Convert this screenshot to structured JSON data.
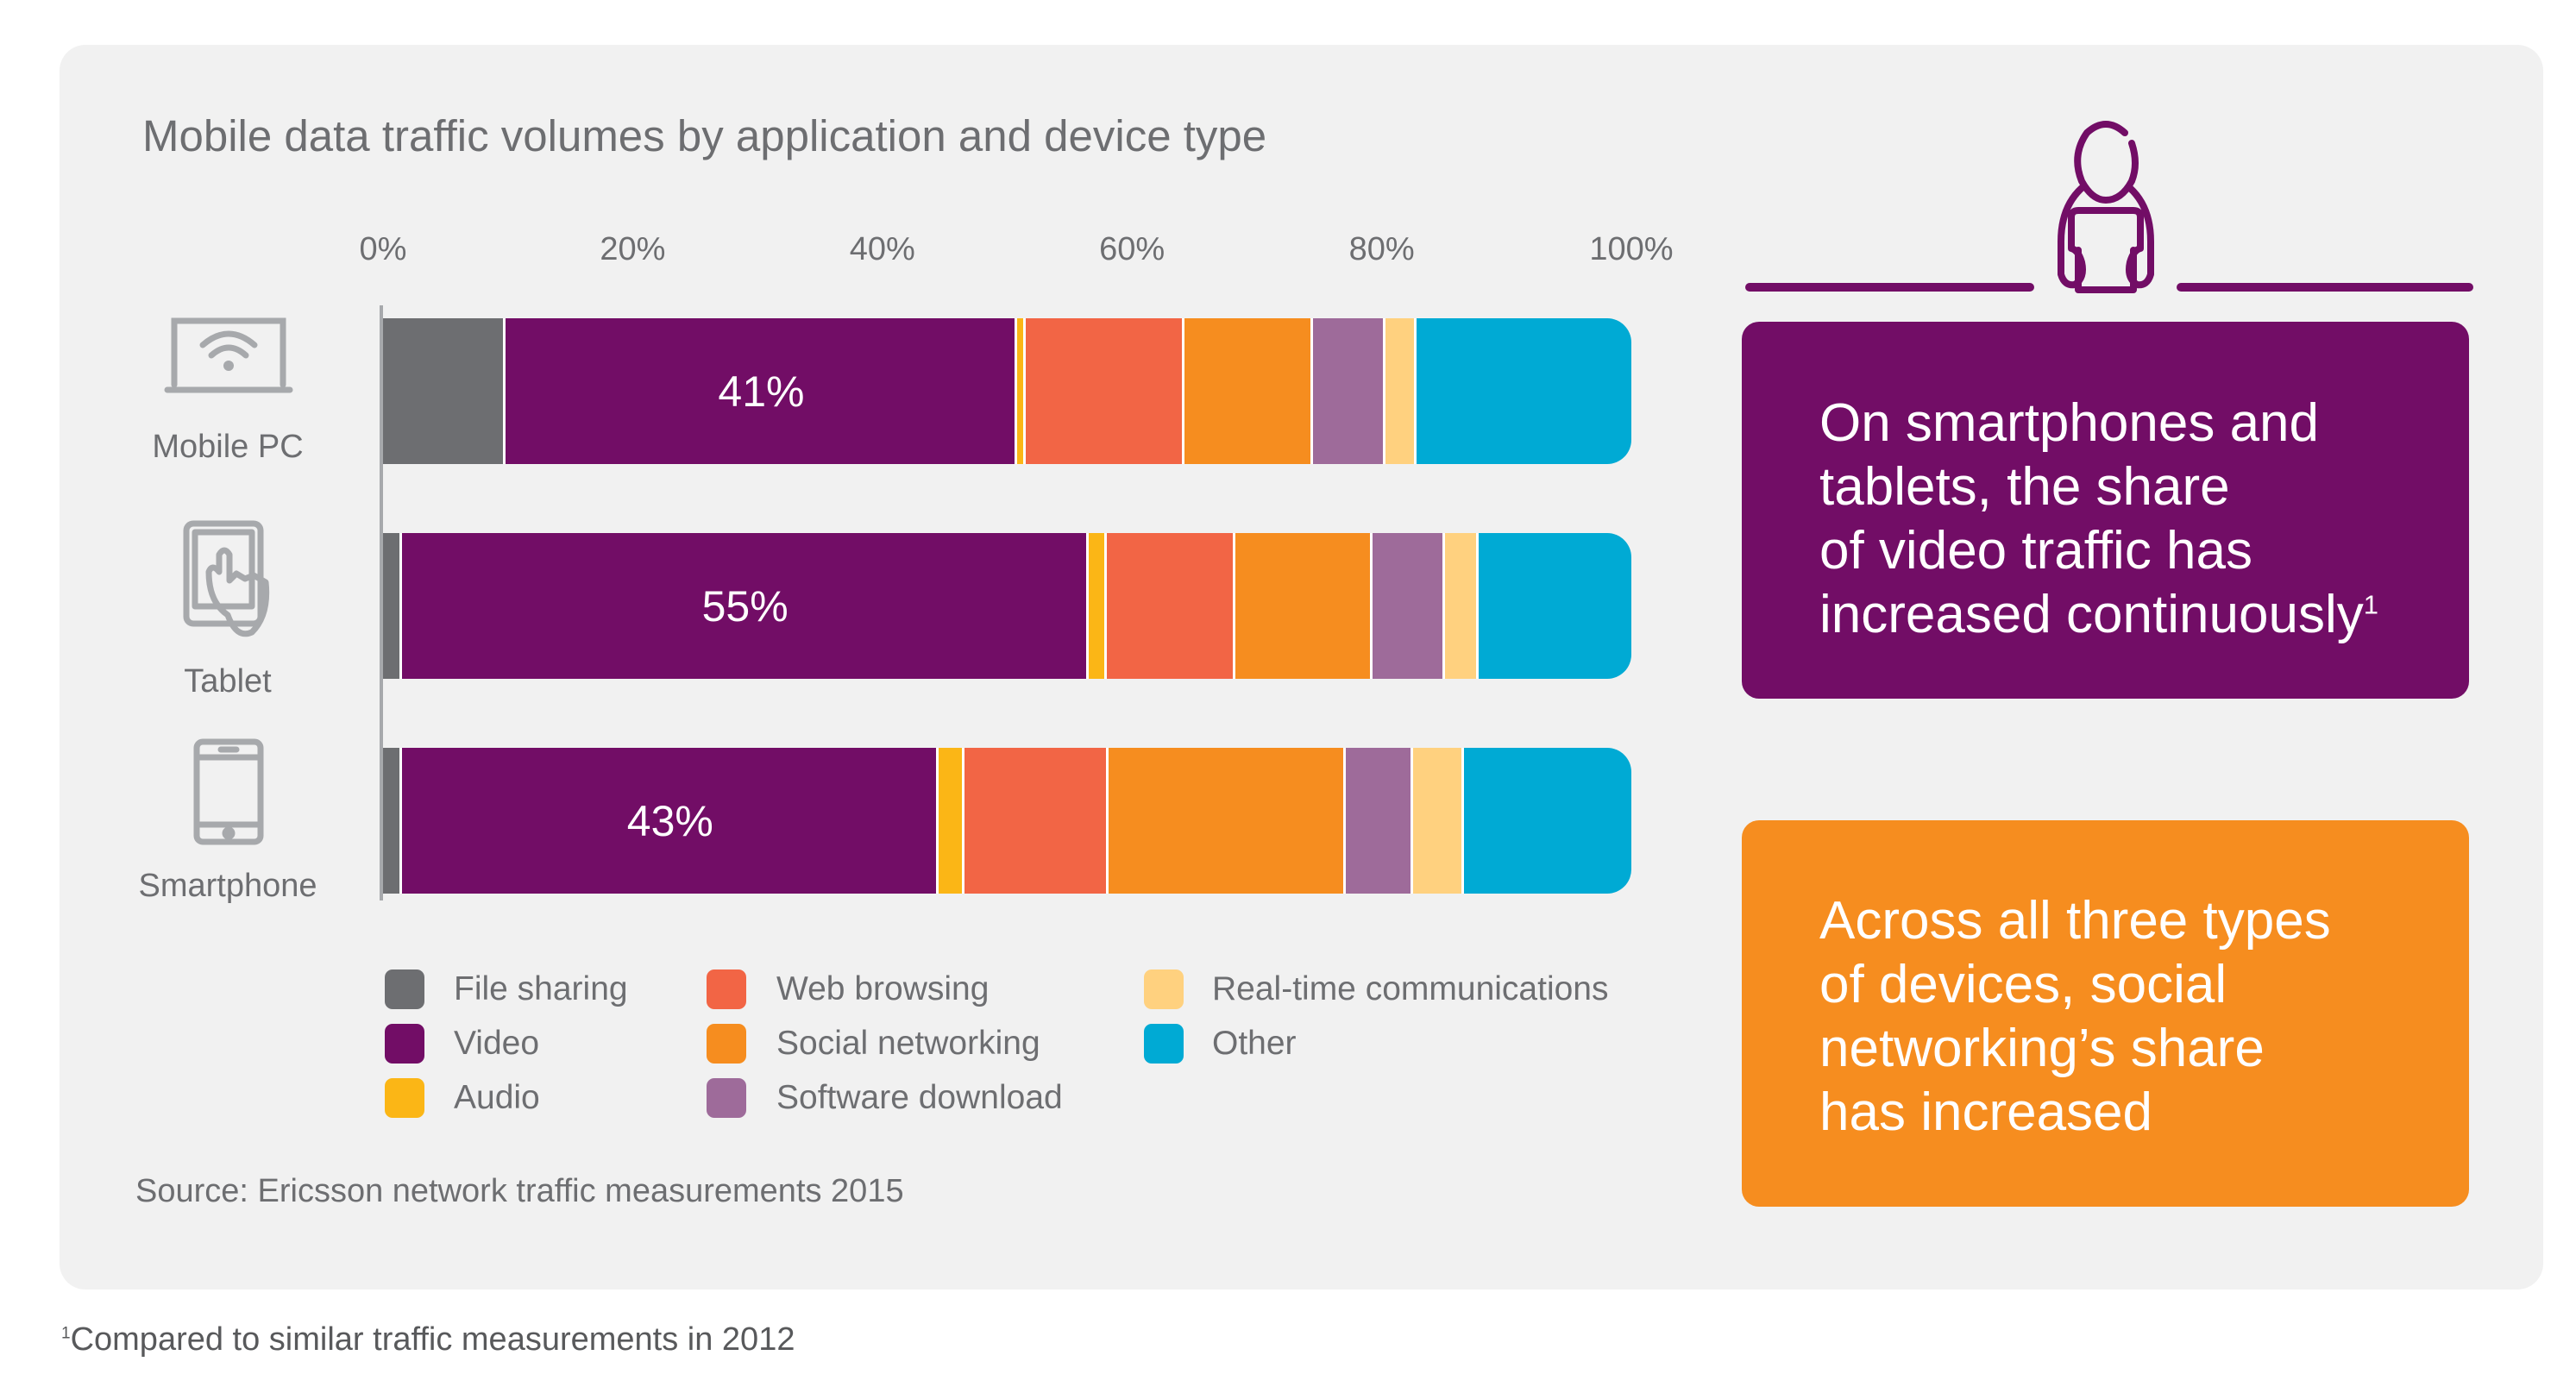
{
  "chart_data": {
    "type": "bar",
    "orientation": "horizontal",
    "stacked": true,
    "title": "Mobile data traffic volumes by application and device type",
    "x_ticks": [
      "0%",
      "20%",
      "40%",
      "60%",
      "80%",
      "100%"
    ],
    "xlim": [
      0,
      100
    ],
    "grid": false,
    "legend_placement": "bottom",
    "categories": [
      "Mobile PC",
      "Tablet",
      "Smartphone"
    ],
    "series": [
      {
        "name": "File sharing",
        "color": "#6d6e71",
        "values": [
          9.8,
          1.5,
          1.5
        ]
      },
      {
        "name": "Video",
        "color": "#720d66",
        "values": [
          41,
          55,
          43
        ],
        "data_labels": [
          "41%",
          "55%",
          "43%"
        ]
      },
      {
        "name": "Audio",
        "color": "#fbb616",
        "values": [
          0.7,
          1.5,
          2.1
        ]
      },
      {
        "name": "Web browsing",
        "color": "#f26545",
        "values": [
          12.7,
          10.3,
          11.5
        ]
      },
      {
        "name": "Social networking",
        "color": "#f68d1f",
        "values": [
          10.3,
          11.0,
          19.0
        ]
      },
      {
        "name": "Software download",
        "color": "#9e6b9a",
        "values": [
          5.8,
          5.8,
          5.4
        ]
      },
      {
        "name": "Real-time communications",
        "color": "#ffd17f",
        "values": [
          2.5,
          2.7,
          4.1
        ]
      },
      {
        "name": "Other",
        "color": "#00aad4",
        "values": [
          17.2,
          12.2,
          13.4
        ]
      }
    ]
  },
  "devices": [
    {
      "label": "Mobile PC",
      "icon": "laptop-wifi-icon"
    },
    {
      "label": "Tablet",
      "icon": "tablet-touch-icon"
    },
    {
      "label": "Smartphone",
      "icon": "smartphone-icon"
    }
  ],
  "source": "Source: Ericsson network traffic measurements 2015",
  "callouts": [
    {
      "lines": [
        "On smartphones and",
        "tablets, the share",
        "of video traffic has",
        "increased continuously"
      ],
      "superscript": "1",
      "color": "#720d66"
    },
    {
      "lines": [
        "Across all three types",
        "of devices, social",
        "networking’s share",
        "has increased"
      ],
      "color": "#f68d1f"
    }
  ],
  "footnote": {
    "marker": "1",
    "text": "Compared to similar traffic measurements in 2012"
  },
  "person_icon": "person-with-tablet-icon"
}
